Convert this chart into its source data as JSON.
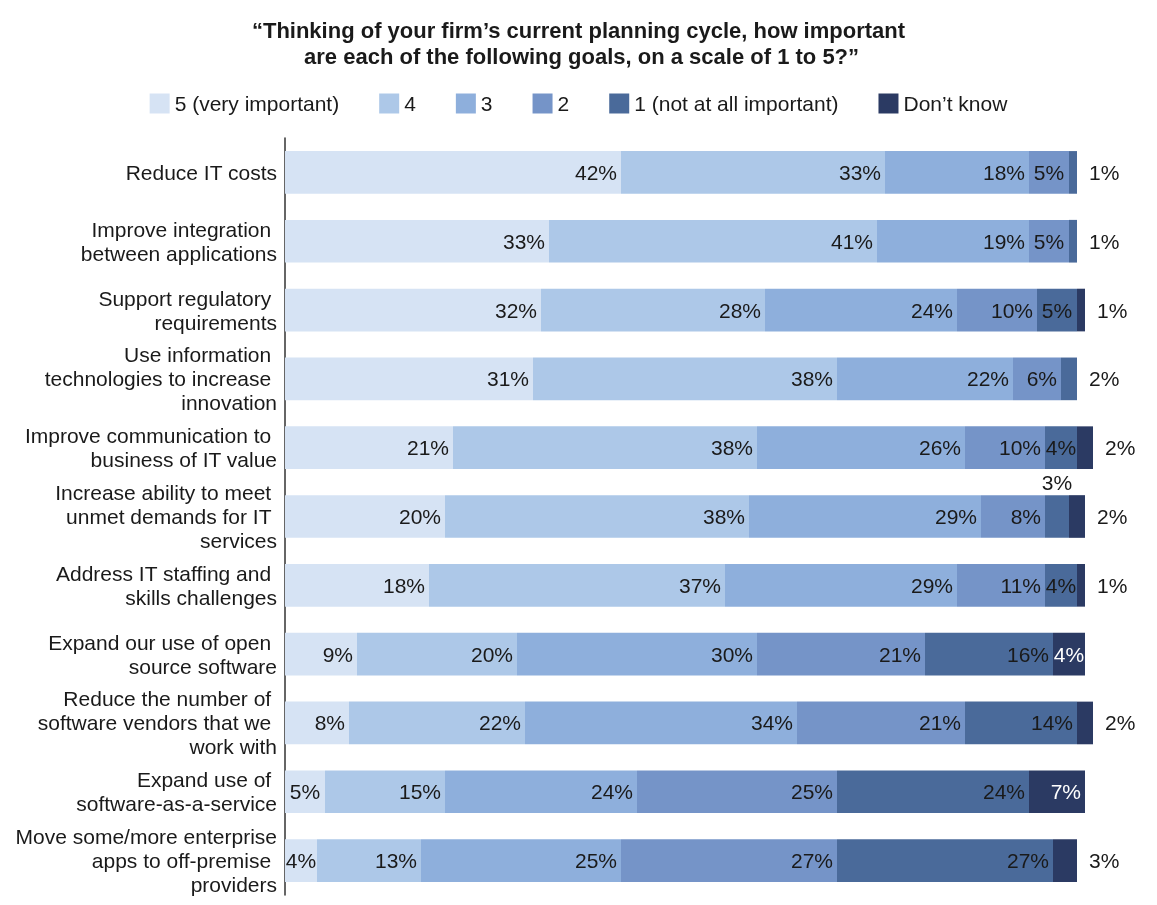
{
  "chart_data": {
    "type": "bar",
    "orientation": "horizontal",
    "stacked": true,
    "title": "“Thinking of your firm’s current planning cycle, how important are each of the following goals, on a scale of 1 to 5?”",
    "categories": [
      "Reduce IT costs",
      "Improve integration between applications",
      "Support regulatory requirements",
      "Use information technologies to increase innovation",
      "Improve communication to business of IT value",
      "Increase ability to meet unmet demands for IT services",
      "Address IT staffing and skills challenges",
      "Expand our use of open source software",
      "Reduce the number of software vendors that we work with",
      "Expand use of software-as-a-service",
      "Move some/more enterprise apps to off-premise providers"
    ],
    "xlim": [
      0,
      101
    ],
    "tick_labels": "y",
    "grid": false,
    "legend": "top",
    "series": [
      {
        "name": "5 (very important)",
        "color": "#d6e3f4",
        "values": [
          42,
          33,
          32,
          31,
          21,
          20,
          18,
          9,
          8,
          5,
          4
        ],
        "value_labels": [
          "42%",
          "33%",
          "32%",
          "31%",
          "21%",
          "20%",
          "18%",
          "9%",
          "8%",
          "5%",
          "4%"
        ]
      },
      {
        "name": "4",
        "color": "#adc8e8",
        "values": [
          33,
          41,
          28,
          38,
          38,
          38,
          37,
          20,
          22,
          15,
          13
        ],
        "value_labels": [
          "33%",
          "41%",
          "28%",
          "38%",
          "38%",
          "38%",
          "37%",
          "20%",
          "22%",
          "15%",
          "13%"
        ]
      },
      {
        "name": "3",
        "color": "#8eafdc",
        "values": [
          18,
          19,
          24,
          22,
          26,
          29,
          29,
          30,
          34,
          24,
          25
        ],
        "value_labels": [
          "18%",
          "19%",
          "24%",
          "22%",
          "26%",
          "29%",
          "29%",
          "30%",
          "34%",
          "24%",
          "25%"
        ]
      },
      {
        "name": "2",
        "color": "#7594c8",
        "values": [
          5,
          5,
          10,
          6,
          10,
          8,
          11,
          21,
          21,
          25,
          27
        ],
        "value_labels": [
          "5%",
          "5%",
          "10%",
          "6%",
          "10%",
          "8%",
          "11%",
          "21%",
          "21%",
          "25%",
          "27%"
        ]
      },
      {
        "name": "1 (not at all important)",
        "color": "#4a6a9a",
        "values": [
          1,
          1,
          5,
          2,
          4,
          3,
          4,
          16,
          14,
          24,
          27
        ],
        "value_labels": [
          "1%",
          "1%",
          "5%",
          "2%",
          "4%",
          "3%",
          "4%",
          "16%",
          "14%",
          "24%",
          "27%"
        ]
      },
      {
        "name": "Don’t know",
        "color": "#2b3a63",
        "values": [
          null,
          null,
          1,
          null,
          2,
          2,
          1,
          4,
          2,
          7,
          3
        ],
        "value_labels": [
          null,
          null,
          "1%",
          null,
          "2%",
          "2%",
          "1%",
          "4%",
          "2%",
          "7%",
          "3%"
        ]
      }
    ]
  }
}
